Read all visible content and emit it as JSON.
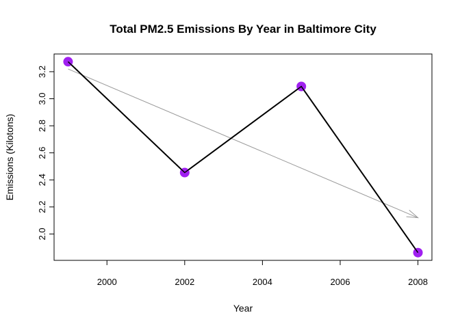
{
  "chart_data": {
    "type": "line",
    "title": "Total PM2.5 Emissions By Year in Baltimore City",
    "xlabel": "Year",
    "ylabel": "Emissions  (Kilotons)",
    "x": [
      1999,
      2002,
      2005,
      2008
    ],
    "series": [
      {
        "values": [
          3.274,
          2.454,
          3.091,
          1.862
        ]
      }
    ],
    "trend_arrow": {
      "from": [
        1999,
        3.22
      ],
      "to": [
        2008,
        2.12
      ]
    },
    "xlim": [
      1998.64,
      2008.36
    ],
    "ylim": [
      1.805,
      3.331
    ],
    "xticks": [
      2000,
      2002,
      2004,
      2006,
      2008
    ],
    "yticks": [
      "2.0",
      "2.2",
      "2.4",
      "2.6",
      "2.8",
      "3.0",
      "3.2"
    ],
    "grid": false,
    "legend": "none",
    "colors": {
      "line": "#000000",
      "marker": "#a020f0",
      "trend": "#999999"
    }
  }
}
